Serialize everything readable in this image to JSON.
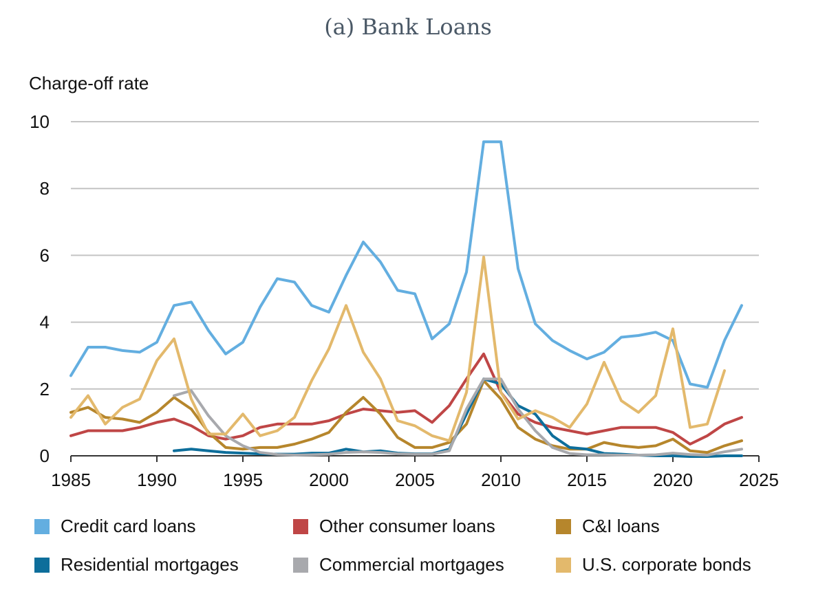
{
  "chart_data": {
    "type": "line",
    "title": "(a) Bank Loans",
    "ylabel": "Charge-off rate",
    "xlabel": "",
    "xlim": [
      1985,
      2025
    ],
    "ylim": [
      0,
      10
    ],
    "x_ticks": [
      1985,
      1990,
      1995,
      2000,
      2005,
      2010,
      2015,
      2020,
      2025
    ],
    "y_ticks": [
      0,
      2,
      4,
      6,
      8,
      10
    ],
    "grid": true,
    "legend_position": "bottom",
    "series": [
      {
        "name": "Credit card loans",
        "color": "#63aee0",
        "x": [
          1985,
          1986,
          1987,
          1988,
          1989,
          1990,
          1991,
          1992,
          1993,
          1994,
          1995,
          1996,
          1997,
          1998,
          1999,
          2000,
          2001,
          2002,
          2003,
          2004,
          2005,
          2006,
          2007,
          2008,
          2009,
          2010,
          2011,
          2012,
          2013,
          2014,
          2015,
          2016,
          2017,
          2018,
          2019,
          2020,
          2021,
          2022,
          2023,
          2024
        ],
        "values": [
          2.4,
          3.25,
          3.25,
          3.15,
          3.1,
          3.4,
          4.5,
          4.6,
          3.75,
          3.05,
          3.4,
          4.45,
          5.3,
          5.2,
          4.5,
          4.3,
          5.4,
          6.4,
          5.8,
          4.95,
          4.85,
          3.5,
          3.95,
          5.5,
          9.4,
          9.4,
          5.6,
          3.95,
          3.45,
          3.15,
          2.9,
          3.1,
          3.55,
          3.6,
          3.7,
          3.45,
          2.15,
          2.05,
          3.45,
          4.5
        ]
      },
      {
        "name": "Other consumer loans",
        "color": "#bf4646",
        "x": [
          1985,
          1986,
          1987,
          1988,
          1989,
          1990,
          1991,
          1992,
          1993,
          1994,
          1995,
          1996,
          1997,
          1998,
          1999,
          2000,
          2001,
          2002,
          2003,
          2004,
          2005,
          2006,
          2007,
          2008,
          2009,
          2010,
          2011,
          2012,
          2013,
          2014,
          2015,
          2016,
          2017,
          2018,
          2019,
          2020,
          2021,
          2022,
          2023,
          2024
        ],
        "values": [
          0.6,
          0.75,
          0.75,
          0.75,
          0.85,
          1.0,
          1.1,
          0.9,
          0.6,
          0.5,
          0.6,
          0.85,
          0.95,
          0.95,
          0.95,
          1.05,
          1.25,
          1.4,
          1.35,
          1.3,
          1.35,
          1.0,
          1.5,
          2.3,
          3.05,
          1.9,
          1.25,
          1.0,
          0.85,
          0.75,
          0.65,
          0.75,
          0.85,
          0.85,
          0.85,
          0.7,
          0.35,
          0.6,
          0.95,
          1.15
        ]
      },
      {
        "name": "C&I loans",
        "color": "#b6862c",
        "x": [
          1985,
          1986,
          1987,
          1988,
          1989,
          1990,
          1991,
          1992,
          1993,
          1994,
          1995,
          1996,
          1997,
          1998,
          1999,
          2000,
          2001,
          2002,
          2003,
          2004,
          2005,
          2006,
          2007,
          2008,
          2009,
          2010,
          2011,
          2012,
          2013,
          2014,
          2015,
          2016,
          2017,
          2018,
          2019,
          2020,
          2021,
          2022,
          2023,
          2024
        ],
        "values": [
          1.3,
          1.45,
          1.15,
          1.1,
          1.0,
          1.3,
          1.75,
          1.4,
          0.7,
          0.25,
          0.2,
          0.25,
          0.25,
          0.35,
          0.5,
          0.7,
          1.3,
          1.75,
          1.25,
          0.55,
          0.25,
          0.25,
          0.4,
          0.95,
          2.25,
          1.7,
          0.85,
          0.5,
          0.3,
          0.2,
          0.2,
          0.4,
          0.3,
          0.25,
          0.3,
          0.5,
          0.15,
          0.1,
          0.3,
          0.45
        ]
      },
      {
        "name": "Residential mortgages",
        "color": "#0d6e9b",
        "x": [
          1991,
          1992,
          1993,
          1994,
          1995,
          1996,
          1997,
          1998,
          1999,
          2000,
          2001,
          2002,
          2003,
          2004,
          2005,
          2006,
          2007,
          2008,
          2009,
          2010,
          2011,
          2012,
          2013,
          2014,
          2015,
          2016,
          2017,
          2018,
          2019,
          2020,
          2021,
          2022,
          2023,
          2024
        ],
        "values": [
          0.15,
          0.2,
          0.15,
          0.1,
          0.08,
          0.06,
          0.05,
          0.05,
          0.08,
          0.08,
          0.2,
          0.12,
          0.15,
          0.08,
          0.06,
          0.06,
          0.2,
          1.25,
          2.3,
          2.15,
          1.5,
          1.25,
          0.6,
          0.25,
          0.2,
          0.07,
          0.05,
          0.02,
          0.0,
          0.0,
          -0.02,
          -0.02,
          0.0,
          0.0
        ]
      },
      {
        "name": "Commercial mortgages",
        "color": "#a8a9ad",
        "x": [
          1991,
          1992,
          1993,
          1994,
          1995,
          1996,
          1997,
          1998,
          1999,
          2000,
          2001,
          2002,
          2003,
          2004,
          2005,
          2006,
          2007,
          2008,
          2009,
          2010,
          2011,
          2012,
          2013,
          2014,
          2015,
          2016,
          2017,
          2018,
          2019,
          2020,
          2021,
          2022,
          2023,
          2024
        ],
        "values": [
          1.8,
          1.95,
          1.2,
          0.6,
          0.3,
          0.1,
          0.04,
          0.02,
          0.03,
          0.05,
          0.1,
          0.12,
          0.1,
          0.06,
          0.05,
          0.05,
          0.15,
          1.4,
          2.3,
          2.3,
          1.4,
          0.75,
          0.25,
          0.07,
          0.03,
          0.03,
          0.02,
          0.02,
          0.03,
          0.08,
          0.04,
          0.02,
          0.12,
          0.2
        ]
      },
      {
        "name": "U.S. corporate bonds",
        "color": "#e3b96c",
        "x": [
          1985,
          1986,
          1987,
          1988,
          1989,
          1990,
          1991,
          1992,
          1993,
          1994,
          1995,
          1996,
          1997,
          1998,
          1999,
          2000,
          2001,
          2002,
          2003,
          2004,
          2005,
          2006,
          2007,
          2008,
          2009,
          2010,
          2011,
          2012,
          2013,
          2014,
          2015,
          2016,
          2017,
          2018,
          2019,
          2020,
          2021,
          2022,
          2023
        ],
        "values": [
          1.15,
          1.8,
          0.95,
          1.45,
          1.7,
          2.85,
          3.5,
          1.7,
          0.65,
          0.65,
          1.25,
          0.6,
          0.75,
          1.15,
          2.25,
          3.2,
          4.5,
          3.1,
          2.3,
          1.05,
          0.9,
          0.6,
          0.45,
          1.9,
          5.95,
          1.9,
          1.1,
          1.35,
          1.15,
          0.85,
          1.55,
          2.8,
          1.65,
          1.3,
          1.8,
          3.8,
          0.85,
          0.95,
          2.55
        ]
      }
    ]
  },
  "legend": [
    {
      "label": "Credit card loans",
      "color": "#63aee0"
    },
    {
      "label": "Other consumer loans",
      "color": "#bf4646"
    },
    {
      "label": "C&I loans",
      "color": "#b6862c"
    },
    {
      "label": "Residential mortgages",
      "color": "#0d6e9b"
    },
    {
      "label": "Commercial mortgages",
      "color": "#a8a9ad"
    },
    {
      "label": "U.S. corporate bonds",
      "color": "#e3b96c"
    }
  ]
}
